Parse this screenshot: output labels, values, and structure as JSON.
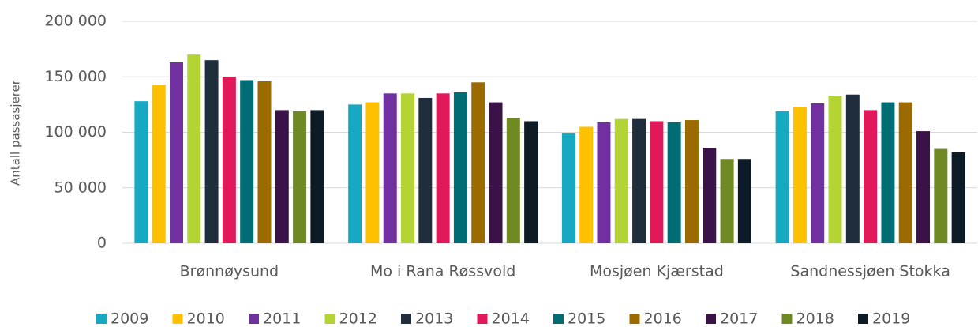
{
  "chart_data": {
    "type": "bar",
    "y_label": "Antall passasjerer",
    "categories": [
      "Brønnøysund",
      "Mo i Rana Røssvold",
      "Mosjøen Kjærstad",
      "Sandnessjøen Stokka"
    ],
    "series": [
      {
        "name": "2009",
        "color": "#17a9c1",
        "values": [
          128000,
          125000,
          99000,
          119000
        ]
      },
      {
        "name": "2010",
        "color": "#ffc000",
        "values": [
          143000,
          127000,
          105000,
          123000
        ]
      },
      {
        "name": "2011",
        "color": "#7030a0",
        "values": [
          163000,
          135000,
          109000,
          126000
        ]
      },
      {
        "name": "2012",
        "color": "#b4d334",
        "values": [
          170000,
          135000,
          112000,
          133000
        ]
      },
      {
        "name": "2013",
        "color": "#1f2d3d",
        "values": [
          165000,
          131000,
          112000,
          134000
        ]
      },
      {
        "name": "2014",
        "color": "#e2185b",
        "values": [
          150000,
          135000,
          110000,
          120000
        ]
      },
      {
        "name": "2015",
        "color": "#006d75",
        "values": [
          147000,
          136000,
          109000,
          127000
        ]
      },
      {
        "name": "2016",
        "color": "#9c6b00",
        "values": [
          146000,
          145000,
          111000,
          127000
        ]
      },
      {
        "name": "2017",
        "color": "#3b1248",
        "values": [
          120000,
          127000,
          86000,
          101000
        ]
      },
      {
        "name": "2018",
        "color": "#6f8a22",
        "values": [
          119000,
          113000,
          76000,
          85000
        ]
      },
      {
        "name": "2019",
        "color": "#0d1b26",
        "values": [
          120000,
          110000,
          76000,
          82000
        ]
      }
    ],
    "ylim": [
      0,
      200000
    ],
    "yticks": [
      0,
      {
        "value": 50000,
        "label": "50 000"
      },
      {
        "value": 100000,
        "label": "100 000"
      },
      {
        "value": 150000,
        "label": "150 000"
      },
      {
        "value": 200000,
        "label": "200 000"
      }
    ],
    "grid": true,
    "legend": "bottom"
  }
}
